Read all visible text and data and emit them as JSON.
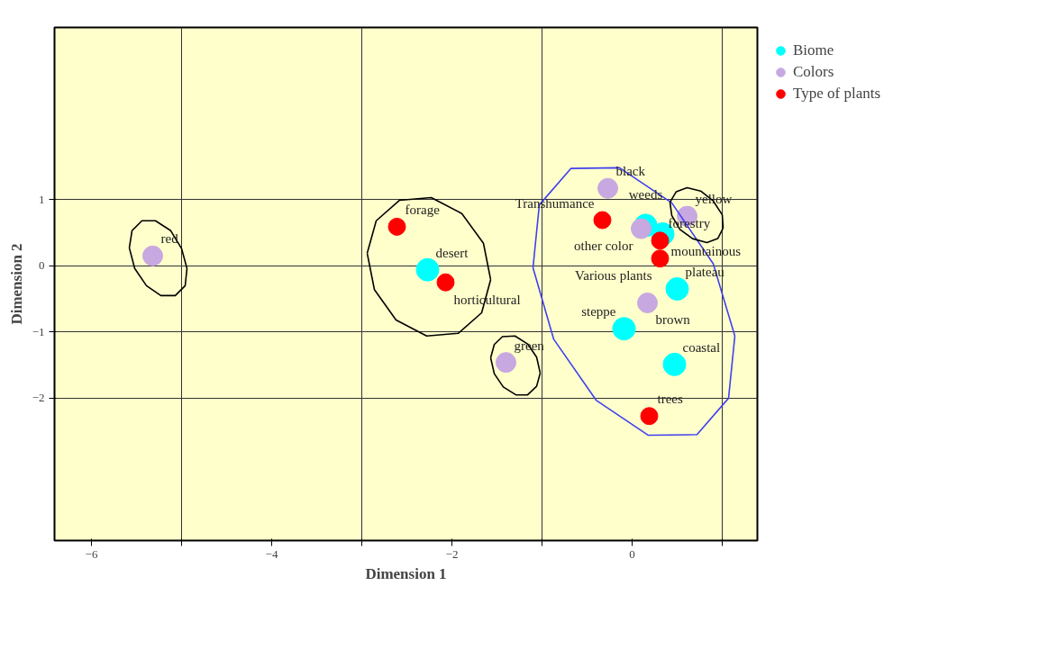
{
  "chart_data": {
    "type": "scatter",
    "xlabel": "Dimension 1",
    "ylabel": "Dimension 2",
    "xlim": [
      -6.41,
      1.39
    ],
    "ylim": [
      -4.15,
      3.6
    ],
    "xticks": [
      -6,
      {
        "value": -5,
        "label": null
      },
      -4,
      {
        "value": -3,
        "label": null
      },
      -2,
      {
        "value": -1,
        "label": null
      },
      0,
      {
        "value": 1,
        "label": null
      }
    ],
    "yticks": [
      -2,
      -1,
      0,
      1
    ],
    "grid": true,
    "legend": "top right",
    "marker": "circle",
    "series": [
      {
        "name": "Biome",
        "color": "#00ffff",
        "x": [
          -2.27,
          0.15,
          0.34,
          0.5,
          -0.09,
          0.47
        ],
        "values": [
          -0.06,
          0.61,
          0.48,
          -0.35,
          -0.95,
          -1.49
        ]
      },
      {
        "name": "Colors",
        "color": "#c8a8e0",
        "x": [
          -5.32,
          -1.4,
          -0.27,
          0.1,
          0.61,
          0.17
        ],
        "values": [
          0.15,
          -1.46,
          1.17,
          0.56,
          0.75,
          -0.56
        ]
      },
      {
        "name": "Type of plants",
        "color": "#ff0000",
        "x": [
          -2.61,
          -2.07,
          -0.33,
          0.31,
          0.31,
          0.19
        ],
        "values": [
          0.59,
          -0.25,
          0.69,
          0.38,
          0.11,
          -2.27
        ]
      },
      {
        "type": "line",
        "marker": "none",
        "color": "#000000",
        "x": [
          -5.58,
          -5.55,
          -5.44,
          -5.29,
          -5.12,
          -5.0,
          -4.94,
          null,
          -5.58,
          -5.52,
          -5.39,
          -5.23,
          -5.07,
          -4.96,
          -4.94
        ],
        "values": [
          0.27,
          0.53,
          0.68,
          0.68,
          0.53,
          0.26,
          -0.04,
          null,
          0.27,
          -0.04,
          -0.3,
          -0.45,
          -0.45,
          -0.3,
          -0.04
        ]
      },
      {
        "type": "line",
        "marker": "none",
        "color": "#000000",
        "x": [
          -2.94,
          -2.84,
          -2.58,
          -2.23,
          -1.89,
          -1.65,
          -1.57,
          null,
          -2.94,
          -2.86,
          -2.62,
          -2.28,
          -1.93,
          -1.67,
          -1.57
        ],
        "values": [
          0.19,
          0.68,
          0.99,
          1.03,
          0.79,
          0.34,
          -0.21,
          null,
          0.19,
          -0.36,
          -0.82,
          -1.06,
          -1.02,
          -0.71,
          -0.21
        ]
      },
      {
        "type": "line",
        "marker": "none",
        "color": "#000000",
        "x": [
          -1.57,
          -1.53,
          -1.44,
          -1.3,
          -1.16,
          -1.06,
          -1.02,
          null,
          -1.57,
          -1.53,
          -1.43,
          -1.29,
          -1.16,
          -1.06,
          -1.02
        ],
        "values": [
          -1.39,
          -1.19,
          -1.07,
          -1.06,
          -1.18,
          -1.38,
          -1.62,
          null,
          -1.39,
          -1.63,
          -1.83,
          -1.95,
          -1.95,
          -1.82,
          -1.62
        ]
      },
      {
        "type": "line",
        "marker": "none",
        "color": "#4040ee",
        "x": [
          -1.1,
          -1.03,
          -0.68,
          -0.14,
          0.44,
          0.9,
          1.14,
          null,
          -1.1,
          -0.87,
          -0.4,
          0.18,
          0.72,
          1.07,
          1.14
        ],
        "values": [
          -0.03,
          0.92,
          1.47,
          1.48,
          0.95,
          0.03,
          -1.06,
          null,
          -0.03,
          -1.11,
          -2.03,
          -2.56,
          -2.55,
          -2.0,
          -1.06
        ]
      },
      {
        "type": "line",
        "marker": "none",
        "color": "#000000",
        "x": [
          0.42,
          0.49,
          0.61,
          0.76,
          0.9,
          1.0,
          1.01,
          null,
          0.42,
          0.44,
          0.53,
          0.67,
          0.83,
          0.95,
          1.01
        ],
        "values": [
          0.96,
          1.12,
          1.18,
          1.13,
          0.98,
          0.77,
          0.57,
          null,
          0.96,
          0.76,
          0.55,
          0.41,
          0.35,
          0.41,
          0.57
        ]
      }
    ],
    "annotations": [
      {
        "text": "red",
        "x": -5.32,
        "y": 0.15
      },
      {
        "text": "forage",
        "x": -2.61,
        "y": 0.59
      },
      {
        "text": "desert",
        "x": -2.27,
        "y": -0.06
      },
      {
        "text": "horticultural",
        "x": -2.07,
        "y": -0.25
      },
      {
        "text": "green",
        "x": -1.4,
        "y": -1.46
      },
      {
        "text": "Transhumance",
        "x": -0.33,
        "y": 0.69
      },
      {
        "text": "black",
        "x": -0.27,
        "y": 1.17
      },
      {
        "text": "weeds",
        "x": 0.15,
        "y": 0.61
      },
      {
        "text": "yellow",
        "x": 0.61,
        "y": 0.75
      },
      {
        "text": "other color",
        "x": 0.1,
        "y": 0.56
      },
      {
        "text": "mountainous",
        "x": 0.34,
        "y": 0.48
      },
      {
        "text": "forestry",
        "x": 0.31,
        "y": 0.38
      },
      {
        "text": "Various plants",
        "x": 0.31,
        "y": 0.11
      },
      {
        "text": "plateau",
        "x": 0.5,
        "y": -0.35
      },
      {
        "text": "brown",
        "x": 0.17,
        "y": -0.56
      },
      {
        "text": "steppe",
        "x": -0.09,
        "y": -0.95
      },
      {
        "text": "coastal",
        "x": 0.47,
        "y": -1.49
      },
      {
        "text": "trees",
        "x": 0.19,
        "y": -2.27
      }
    ]
  }
}
